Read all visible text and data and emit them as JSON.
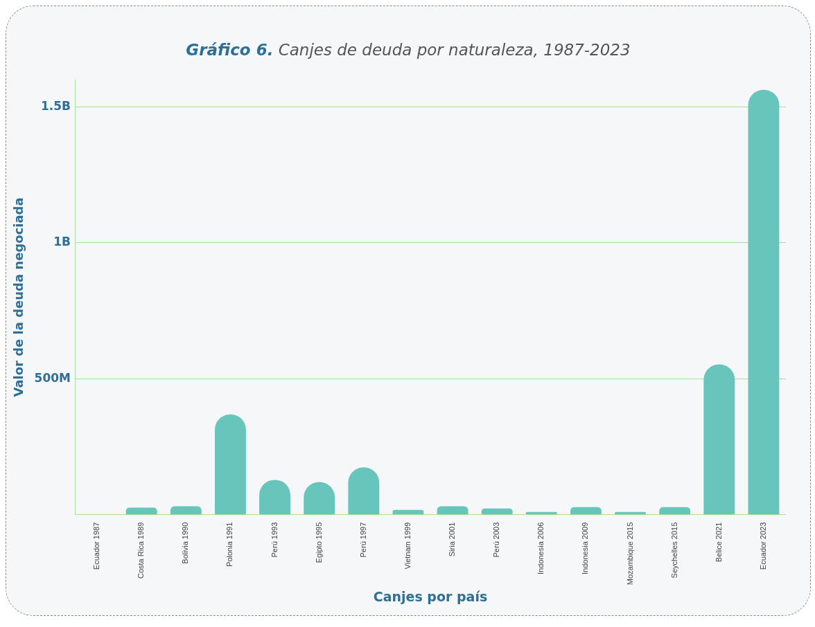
{
  "chart_data": {
    "type": "bar",
    "title": "Gráfico 6.",
    "subtitle": "Canjes de deuda por naturaleza, 1987-2023",
    "xlabel": "Canjes por país",
    "ylabel": "Valor de la deuda negociada",
    "categories": [
      "Ecuador 1987",
      "Costa Rica 1989",
      "Bolivia 1990",
      "Polonia 1991",
      "Perú 1993",
      "Egipto 1995",
      "Perú 1997",
      "Vietnam 1999",
      "Siria 2001",
      "Perú 2003",
      "Indonesia 2006",
      "Indonesia 2009",
      "Mozambique 2015",
      "Seychelles 2015",
      "Belice 2021",
      "Ecuador 2023"
    ],
    "values": [
      1000000,
      26000000,
      31000000,
      369000000,
      128000000,
      120000000,
      174000000,
      18000000,
      31000000,
      23000000,
      10000000,
      28000000,
      10000000,
      28000000,
      553000000,
      1563000000
    ],
    "color": "#67c5bc",
    "ylim": [
      0,
      1600000000
    ],
    "yticks": [
      {
        "value": 0,
        "label": null
      },
      {
        "value": 500000000,
        "label": "500M"
      },
      {
        "value": 1000000000,
        "label": "1B"
      },
      {
        "value": 1500000000,
        "label": "1.5B"
      }
    ],
    "grid": "y",
    "legend": false
  }
}
